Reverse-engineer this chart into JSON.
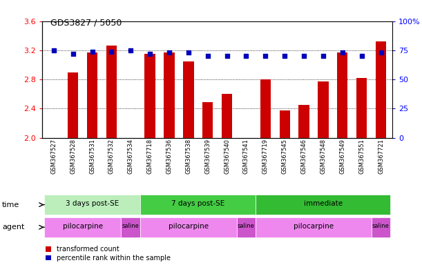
{
  "title": "GDS3827 / 5050",
  "samples": [
    "GSM367527",
    "GSM367528",
    "GSM367531",
    "GSM367532",
    "GSM367534",
    "GSM367718",
    "GSM367536",
    "GSM367538",
    "GSM367539",
    "GSM367540",
    "GSM367541",
    "GSM367719",
    "GSM367545",
    "GSM367546",
    "GSM367548",
    "GSM367549",
    "GSM367551",
    "GSM367721"
  ],
  "transformed_count": [
    2.0,
    2.9,
    3.17,
    3.27,
    2.0,
    3.15,
    3.17,
    3.05,
    2.49,
    2.6,
    2.0,
    2.8,
    2.38,
    2.45,
    2.77,
    3.17,
    2.82,
    3.32
  ],
  "percentile_rank": [
    75,
    72,
    74,
    74,
    75,
    72,
    73,
    73,
    70,
    70,
    70,
    70,
    70,
    70,
    70,
    73,
    70,
    73
  ],
  "ylim_left": [
    2.0,
    3.6
  ],
  "ylim_right": [
    0,
    100
  ],
  "yticks_left": [
    2.0,
    2.4,
    2.8,
    3.2,
    3.6
  ],
  "yticks_right": [
    0,
    25,
    50,
    75,
    100
  ],
  "bar_color": "#cc0000",
  "dot_color": "#0000bb",
  "bar_bottom": 2.0,
  "time_groups": [
    {
      "label": "3 days post-SE",
      "start": 0,
      "end": 5,
      "color": "#bbeebb"
    },
    {
      "label": "7 days post-SE",
      "start": 5,
      "end": 11,
      "color": "#44cc44"
    },
    {
      "label": "immediate",
      "start": 11,
      "end": 18,
      "color": "#33bb33"
    }
  ],
  "agent_groups": [
    {
      "label": "pilocarpine",
      "start": 0,
      "end": 4,
      "color": "#ee88ee"
    },
    {
      "label": "saline",
      "start": 4,
      "end": 5,
      "color": "#cc55cc"
    },
    {
      "label": "pilocarpine",
      "start": 5,
      "end": 10,
      "color": "#ee88ee"
    },
    {
      "label": "saline",
      "start": 10,
      "end": 11,
      "color": "#cc55cc"
    },
    {
      "label": "pilocarpine",
      "start": 11,
      "end": 17,
      "color": "#ee88ee"
    },
    {
      "label": "saline",
      "start": 17,
      "end": 18,
      "color": "#cc55cc"
    }
  ],
  "legend_items": [
    {
      "label": "transformed count",
      "color": "#cc0000"
    },
    {
      "label": "percentile rank within the sample",
      "color": "#0000bb"
    }
  ]
}
